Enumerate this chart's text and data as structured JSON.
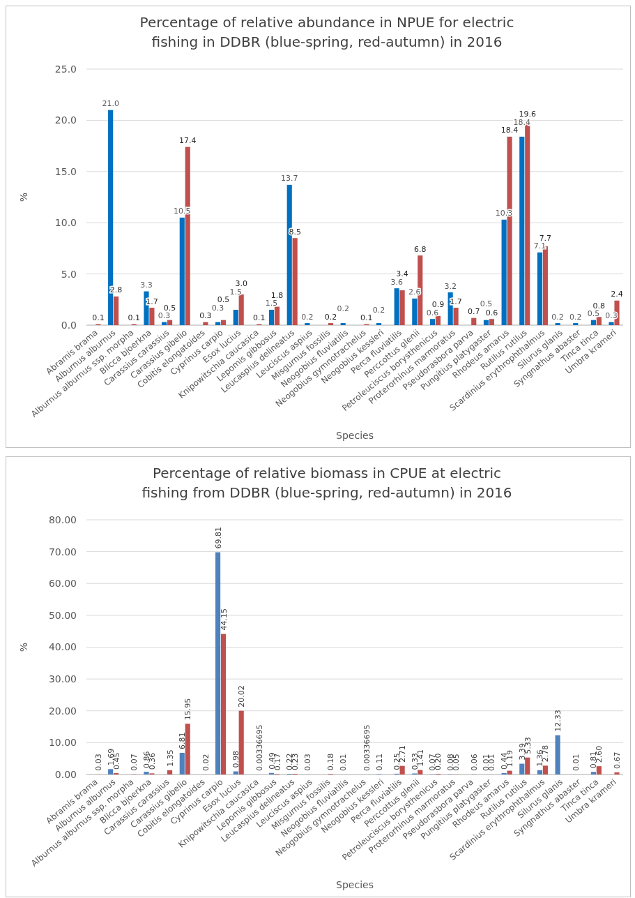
{
  "chart_data": [
    {
      "type": "bar",
      "title": "Percentage of relative abundance in NPUE for electric fishing in DDBR (blue-spring, red-autumn) in 2016",
      "xlabel": "Species",
      "ylabel": "%",
      "categories": [
        "Abramis brama",
        "Alburnus alburnus",
        "Alburnus alburnus ssp. morpha",
        "Blicca bjoerkna",
        "Carassius carassius",
        "Carassius gibelio",
        "Cobitis elongatoides",
        "Cyprinus carpio",
        "Esox lucius",
        "Knipowitschia caucasica",
        "Lepomis gibbosus",
        "Leucaspius delineatus",
        "Leuciscus aspius",
        "Misgurnus fossilis",
        "Neogobius fluviatilis",
        "Neogobius gymnotrachelus",
        "Neogobius kessleri",
        "Perca fluviatilis",
        "Perccottus glenii",
        "Petroleuciscus borysthenicus",
        "Proterorhinus marmoratus",
        "Pseudorasbora parva",
        "Pungitius platygaster",
        "Rhodeus amarus",
        "Rutilus rutilus",
        "Scardinius erythrophthalmus",
        "Silurus glanis",
        "Syngnathus abaster",
        "Tinca tinca",
        "Umbra krameri"
      ],
      "series": [
        {
          "color": "#0070c0",
          "values": [
            0,
            21.0,
            0,
            3.3,
            0.3,
            10.5,
            0,
            0.3,
            1.5,
            0,
            1.5,
            13.7,
            0.2,
            0,
            0.2,
            0,
            0.2,
            3.6,
            2.6,
            0.6,
            3.2,
            0,
            0.5,
            10.3,
            18.4,
            7.1,
            0.2,
            0.2,
            0.5,
            0.3
          ],
          "value_labels": [
            null,
            "21.0",
            null,
            "3.3",
            "0.3",
            "10.5",
            null,
            "0.3",
            "1.5",
            null,
            "1.5",
            "13.7",
            "0.2",
            null,
            "0.2",
            null,
            "0.2",
            "3.6",
            "2.6",
            "0.6",
            "3.2",
            null,
            "0.5",
            "10.3",
            "18.4",
            "7.1",
            "0.2",
            "0.2",
            "0.5",
            "0.3"
          ]
        },
        {
          "color": "#c0504d",
          "values": [
            0.1,
            2.8,
            0.1,
            1.7,
            0.5,
            17.4,
            0.3,
            0.5,
            3.0,
            0.1,
            1.8,
            8.5,
            0,
            0.2,
            0,
            0.1,
            0,
            3.4,
            6.8,
            0.9,
            1.7,
            0.7,
            0.6,
            18.4,
            19.6,
            7.7,
            0,
            0,
            0.8,
            2.4
          ],
          "value_labels": [
            "0.1",
            "2.8",
            "0.1",
            "1.7",
            "0.5",
            "17.4",
            "0.3",
            "0.5",
            "3.0",
            "0.1",
            "1.8",
            "8.5",
            null,
            "0.2",
            null,
            "0.1",
            null,
            "3.4",
            "6.8",
            "0.9",
            "1.7",
            "0.7",
            "0.6",
            "18.4",
            "19.6",
            "7.7",
            null,
            null,
            "0.8",
            "2.4"
          ]
        }
      ],
      "ylim": [
        0,
        25
      ],
      "yticks": [
        {
          "value": 0,
          "label": "0.0"
        },
        {
          "value": 5,
          "label": "5.0"
        },
        {
          "value": 10,
          "label": "10.0"
        },
        {
          "value": 15,
          "label": "15.0"
        },
        {
          "value": 20,
          "label": "20.0"
        },
        {
          "value": 25,
          "label": "25.0"
        }
      ],
      "grid": "y"
    },
    {
      "type": "bar",
      "title": "Percentage of relative biomass in CPUE at electric fishing from DDBR (blue-spring, red-autumn) in 2016",
      "xlabel": "Species",
      "ylabel": "%",
      "categories": [
        "Abramis brama",
        "Alburnus alburnus",
        "Alburnus alburnus ssp. morpha",
        "Blicca bjoerkna",
        "Carassius carassius",
        "Carassius gibelio",
        "Cobitis elongatoides",
        "Cyprinus carpio",
        "Esox lucius",
        "Knipowitschia caucasica",
        "Lepomis gibbosus",
        "Leucaspius delineatus",
        "Leuciscus aspius",
        "Misgurnus fossilis",
        "Neogobius fluviatilis",
        "Neogobius gymnotrachelus",
        "Neogobius kessleri",
        "Perca fluviatilis",
        "Perccottus glenii",
        "Petroleuciscus borysthenicus",
        "Proterorhinus marmoratus",
        "Pseudorasbora parva",
        "Pungitius platygaster",
        "Rhodeus amarus",
        "Rutilus rutilus",
        "Scardinius erythrophthalmus",
        "Silurus glanis",
        "Syngnathus abaster",
        "Tinca tinca",
        "Umbra krameri"
      ],
      "series": [
        {
          "color": "#4f81bd",
          "values": [
            0,
            1.69,
            0,
            0.86,
            0,
            6.81,
            0,
            69.81,
            0.98,
            0,
            0.49,
            0.22,
            0.03,
            0,
            0.01,
            0,
            0.11,
            0.25,
            0.33,
            0.07,
            0.08,
            0,
            0.01,
            0.44,
            3.39,
            1.36,
            12.33,
            0.01,
            0.81,
            0
          ],
          "value_labels": [
            null,
            "1.69",
            null,
            "0.86",
            null,
            "6.81",
            null,
            "69.81",
            "0.98",
            null,
            "0.49",
            "0.22",
            "0.03",
            null,
            "0.01",
            null,
            "0.11",
            "0.25",
            "0.33",
            "0.07",
            "0.08",
            null,
            "0.01",
            "0.44",
            "3.39",
            "1.36",
            "12.33",
            "0.01",
            "0.81",
            null
          ]
        },
        {
          "color": "#c0504d",
          "values": [
            0.03,
            0.45,
            0.07,
            0.36,
            1.35,
            15.95,
            0.02,
            44.15,
            20.02,
            0.00336695,
            0.17,
            0.23,
            0,
            0.18,
            0,
            0.00336695,
            0,
            2.71,
            1.41,
            0.2,
            0.05,
            0.06,
            0.01,
            1.19,
            5.33,
            2.78,
            0,
            0,
            2.6,
            0.67
          ],
          "value_labels": [
            "0.03",
            "0.45",
            "0.07",
            "0.36",
            "1.35",
            "15.95",
            "0.02",
            "44.15",
            "20.02",
            "0.00336695",
            "0.17",
            "0.23",
            null,
            "0.18",
            null,
            "0.00336695",
            null,
            "2.71",
            "1.41",
            "0.20",
            "0.05",
            "0.06",
            "0.01",
            "1.19",
            "5.33",
            "2.78",
            null,
            null,
            "2.60",
            "0.67"
          ]
        }
      ],
      "ylim": [
        0,
        80
      ],
      "yticks": [
        {
          "value": 0,
          "label": "0.00"
        },
        {
          "value": 10,
          "label": "10.00"
        },
        {
          "value": 20,
          "label": "20.00"
        },
        {
          "value": 30,
          "label": "30.00"
        },
        {
          "value": 40,
          "label": "40.00"
        },
        {
          "value": 50,
          "label": "50.00"
        },
        {
          "value": 60,
          "label": "60.00"
        },
        {
          "value": 70,
          "label": "70.00"
        },
        {
          "value": 80,
          "label": "80.00"
        }
      ],
      "grid": "y"
    }
  ]
}
